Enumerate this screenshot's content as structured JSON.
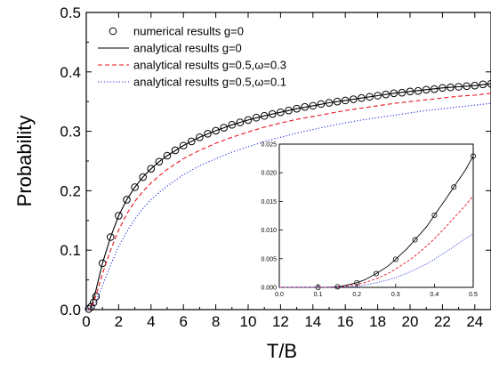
{
  "chart_data": [
    {
      "id": "main",
      "type": "line",
      "xlabel": "T/B",
      "ylabel": "Probability",
      "xlim": [
        0,
        25
      ],
      "ylim": [
        0,
        0.5
      ],
      "x_ticks": [
        0,
        2,
        4,
        6,
        8,
        10,
        12,
        14,
        16,
        18,
        20,
        22,
        24
      ],
      "y_ticks": [
        0.0,
        0.1,
        0.2,
        0.3,
        0.4,
        0.5
      ],
      "x_tick_labels": [
        "0",
        "2",
        "4",
        "6",
        "8",
        "10",
        "12",
        "14",
        "16",
        "18",
        "20",
        "22",
        "24"
      ],
      "y_tick_labels": [
        "0.0",
        "0.1",
        "0.2",
        "0.3",
        "0.4",
        "0.5"
      ],
      "legend_position": "top-left",
      "series": [
        {
          "name": "numerical results g=0",
          "style": "markers",
          "marker": "open-circle",
          "color": "#000000",
          "x": [
            0.15,
            0.3,
            0.45,
            0.6,
            1.0,
            1.5,
            2.0,
            2.5,
            3.0,
            3.5,
            4.0,
            4.5,
            5.0,
            5.5,
            6.0,
            6.5,
            7.0,
            7.5,
            8.0,
            8.5,
            9.0,
            9.5,
            10.0,
            10.5,
            11.0,
            11.5,
            12.0,
            12.5,
            13.0,
            13.5,
            14.0,
            14.5,
            15.0,
            15.5,
            16.0,
            16.5,
            17.0,
            17.5,
            18.0,
            18.5,
            19.0,
            19.5,
            20.0,
            20.5,
            21.0,
            21.5,
            22.0,
            22.5,
            23.0,
            23.5,
            24.0,
            24.5,
            25.0
          ],
          "y": [
            0.001,
            0.005,
            0.012,
            0.022,
            0.078,
            0.122,
            0.158,
            0.185,
            0.206,
            0.223,
            0.237,
            0.249,
            0.259,
            0.268,
            0.276,
            0.283,
            0.29,
            0.296,
            0.301,
            0.306,
            0.311,
            0.315,
            0.319,
            0.323,
            0.326,
            0.329,
            0.332,
            0.335,
            0.338,
            0.341,
            0.343,
            0.346,
            0.348,
            0.35,
            0.352,
            0.354,
            0.356,
            0.358,
            0.36,
            0.362,
            0.364,
            0.365,
            0.367,
            0.368,
            0.37,
            0.371,
            0.373,
            0.374,
            0.375,
            0.376,
            0.377,
            0.379,
            0.38
          ]
        },
        {
          "name": "analytical results g=0",
          "style": "solid",
          "color": "#000000",
          "x": [
            0,
            0.1,
            0.2,
            0.3,
            0.4,
            0.5,
            0.6,
            0.8,
            1.0,
            1.5,
            2.0,
            2.5,
            3.0,
            3.5,
            4.0,
            4.5,
            5.0,
            6.0,
            7.0,
            8.0,
            9.0,
            10.0,
            11.0,
            12.0,
            13.0,
            14.0,
            15.0,
            16.0,
            17.0,
            18.0,
            19.0,
            20.0,
            21.0,
            22.0,
            23.0,
            24.0,
            25.0
          ],
          "y": [
            0,
            0,
            0.0004,
            0.005,
            0.013,
            0.023,
            0.033,
            0.056,
            0.078,
            0.122,
            0.158,
            0.185,
            0.206,
            0.223,
            0.237,
            0.249,
            0.259,
            0.276,
            0.29,
            0.301,
            0.311,
            0.319,
            0.326,
            0.332,
            0.338,
            0.343,
            0.348,
            0.352,
            0.356,
            0.36,
            0.364,
            0.367,
            0.37,
            0.373,
            0.375,
            0.377,
            0.38
          ]
        },
        {
          "name": "analytical results g=0.5,ω=0.3",
          "style": "dashed",
          "color": "#e8141c",
          "x": [
            0,
            0.1,
            0.2,
            0.3,
            0.4,
            0.5,
            0.6,
            0.8,
            1.0,
            1.5,
            2.0,
            2.5,
            3.0,
            3.5,
            4.0,
            4.5,
            5.0,
            6.0,
            7.0,
            8.0,
            9.0,
            10.0,
            11.0,
            12.0,
            13.0,
            14.0,
            15.0,
            16.0,
            17.0,
            18.0,
            19.0,
            20.0,
            21.0,
            22.0,
            23.0,
            24.0,
            25.0
          ],
          "y": [
            0,
            0,
            0.0003,
            0.0035,
            0.009,
            0.016,
            0.024,
            0.042,
            0.06,
            0.1,
            0.134,
            0.161,
            0.182,
            0.199,
            0.213,
            0.225,
            0.236,
            0.254,
            0.268,
            0.28,
            0.29,
            0.299,
            0.307,
            0.314,
            0.32,
            0.325,
            0.33,
            0.335,
            0.339,
            0.343,
            0.347,
            0.35,
            0.353,
            0.356,
            0.359,
            0.361,
            0.364
          ]
        },
        {
          "name": "analytical results g=0.5,ω=0.1",
          "style": "dotted",
          "color": "#1f2ee0",
          "x": [
            0,
            0.1,
            0.2,
            0.3,
            0.4,
            0.5,
            0.6,
            0.8,
            1.0,
            1.5,
            2.0,
            2.5,
            3.0,
            3.5,
            4.0,
            4.5,
            5.0,
            6.0,
            7.0,
            8.0,
            9.0,
            10.0,
            11.0,
            12.0,
            13.0,
            14.0,
            15.0,
            16.0,
            17.0,
            18.0,
            19.0,
            20.0,
            21.0,
            22.0,
            23.0,
            24.0,
            25.0
          ],
          "y": [
            0,
            0,
            0.0002,
            0.002,
            0.005,
            0.009,
            0.014,
            0.027,
            0.04,
            0.075,
            0.106,
            0.131,
            0.152,
            0.17,
            0.185,
            0.197,
            0.208,
            0.227,
            0.242,
            0.254,
            0.265,
            0.274,
            0.283,
            0.29,
            0.297,
            0.303,
            0.309,
            0.314,
            0.319,
            0.323,
            0.327,
            0.331,
            0.335,
            0.338,
            0.341,
            0.344,
            0.347
          ]
        }
      ]
    },
    {
      "id": "inset",
      "type": "line",
      "xlabel": "",
      "ylabel": "",
      "xlim": [
        0,
        0.5
      ],
      "ylim": [
        0,
        0.025
      ],
      "x_ticks": [
        0.0,
        0.1,
        0.2,
        0.3,
        0.4,
        0.5
      ],
      "y_ticks": [
        0.0,
        0.005,
        0.01,
        0.015,
        0.02,
        0.025
      ],
      "x_tick_labels": [
        "0.0",
        "0.1",
        "0.2",
        "0.3",
        "0.4",
        "0.5"
      ],
      "y_tick_labels": [
        "0.000",
        "0.005",
        "0.010",
        "0.015",
        "0.020",
        "0.025"
      ],
      "series": [
        {
          "style": "markers",
          "marker": "open-circle",
          "color": "#000000",
          "x": [
            0.1,
            0.15,
            0.2,
            0.25,
            0.3,
            0.35,
            0.4,
            0.45,
            0.5
          ],
          "y": [
            0,
            0.0001,
            0.0008,
            0.0024,
            0.0049,
            0.0083,
            0.0126,
            0.0175,
            0.0229
          ]
        },
        {
          "style": "solid",
          "color": "#000000",
          "x": [
            0,
            0.05,
            0.1,
            0.12,
            0.14,
            0.16,
            0.18,
            0.2,
            0.22,
            0.25,
            0.28,
            0.3,
            0.33,
            0.35,
            0.38,
            0.4,
            0.43,
            0.45,
            0.48,
            0.5
          ],
          "y": [
            0,
            0,
            0,
            0,
            5e-05,
            0.0002,
            0.0005,
            0.0008,
            0.0013,
            0.0024,
            0.0037,
            0.0049,
            0.0068,
            0.0083,
            0.0106,
            0.0126,
            0.0155,
            0.0175,
            0.0205,
            0.0229
          ]
        },
        {
          "style": "dashed",
          "color": "#e8141c",
          "x": [
            0,
            0.05,
            0.1,
            0.12,
            0.14,
            0.16,
            0.18,
            0.2,
            0.22,
            0.25,
            0.28,
            0.3,
            0.33,
            0.35,
            0.38,
            0.4,
            0.43,
            0.45,
            0.48,
            0.5
          ],
          "y": [
            0,
            0,
            0,
            0,
            3e-05,
            0.0001,
            0.0003,
            0.0005,
            0.0008,
            0.0015,
            0.0024,
            0.0032,
            0.0045,
            0.0055,
            0.0072,
            0.0085,
            0.0106,
            0.0121,
            0.0143,
            0.016
          ]
        },
        {
          "style": "dotted",
          "color": "#1f2ee0",
          "x": [
            0,
            0.05,
            0.1,
            0.12,
            0.14,
            0.16,
            0.18,
            0.2,
            0.22,
            0.25,
            0.28,
            0.3,
            0.33,
            0.35,
            0.38,
            0.4,
            0.43,
            0.45,
            0.48,
            0.5
          ],
          "y": [
            0,
            0,
            0,
            0,
            0,
            5e-05,
            0.0001,
            0.0002,
            0.0004,
            0.0008,
            0.0013,
            0.0017,
            0.0025,
            0.0031,
            0.0041,
            0.0049,
            0.0062,
            0.0071,
            0.0085,
            0.0093
          ]
        }
      ]
    }
  ]
}
